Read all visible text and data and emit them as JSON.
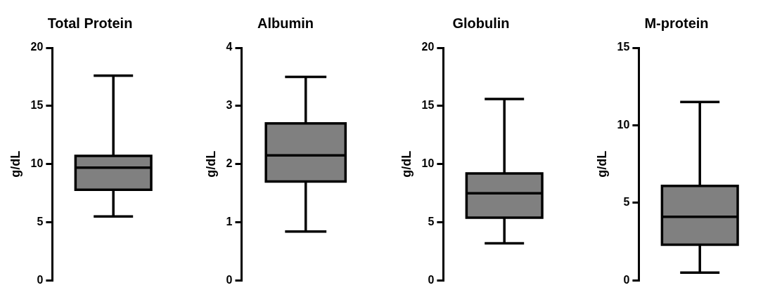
{
  "chart_data": [
    {
      "type": "box",
      "title": "Total Protein",
      "ylabel": "g/dL",
      "categories": [
        null
      ],
      "color": "#808080",
      "boxes": [
        {
          "low": 5.5,
          "q1": 7.8,
          "median": 9.7,
          "q3": 10.7,
          "high": 17.6
        }
      ],
      "ylim": [
        0,
        20
      ],
      "yticks": [
        0,
        5,
        10,
        15,
        20
      ],
      "grid": false,
      "tick_labels": "y"
    },
    {
      "type": "box",
      "title": "Albumin",
      "ylabel": "g/dL",
      "categories": [
        null
      ],
      "color": "#808080",
      "boxes": [
        {
          "low": 0.84,
          "q1": 1.7,
          "median": 2.15,
          "q3": 2.7,
          "high": 3.5
        }
      ],
      "ylim": [
        0,
        4
      ],
      "yticks": [
        0,
        1,
        2,
        3,
        4
      ],
      "grid": false,
      "tick_labels": "y"
    },
    {
      "type": "box",
      "title": "Globulin",
      "ylabel": "g/dL",
      "categories": [
        null
      ],
      "color": "#808080",
      "boxes": [
        {
          "low": 3.2,
          "q1": 5.4,
          "median": 7.5,
          "q3": 9.2,
          "high": 15.6
        }
      ],
      "ylim": [
        0,
        20
      ],
      "yticks": [
        0,
        5,
        10,
        15,
        20
      ],
      "grid": false,
      "tick_labels": "y"
    },
    {
      "type": "box",
      "title": "M-protein",
      "ylabel": "g/dL",
      "categories": [
        null
      ],
      "color": "#808080",
      "boxes": [
        {
          "low": 0.5,
          "q1": 2.3,
          "median": 4.1,
          "q3": 6.1,
          "high": 11.5
        }
      ],
      "ylim": [
        0,
        15
      ],
      "yticks": [
        0,
        5,
        10,
        15
      ],
      "grid": false,
      "tick_labels": "y"
    }
  ]
}
